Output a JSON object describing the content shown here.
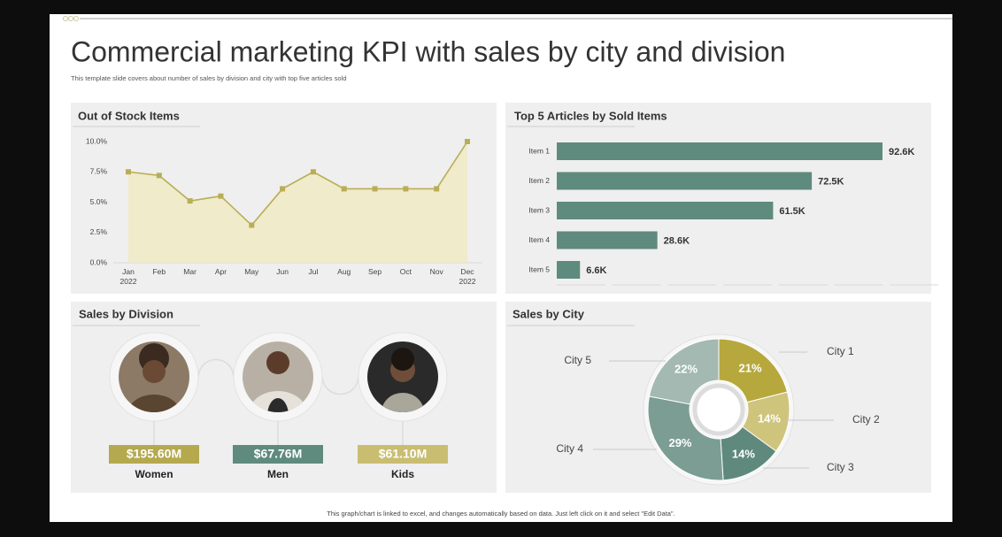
{
  "header": {
    "title": "Commercial marketing KPI with sales by city and division",
    "subtitle": "This template slide covers about number of sales by division and city with top five articles sold"
  },
  "chart_data": [
    {
      "type": "line",
      "title": "Out of Stock Items",
      "categories": [
        "Jan\n2022",
        "Feb",
        "Mar",
        "Apr",
        "May",
        "Jun",
        "Jul",
        "Aug",
        "Sep",
        "Oct",
        "Nov",
        "Dec\n2022"
      ],
      "values": [
        7.5,
        7.2,
        5.1,
        5.5,
        3.1,
        6.1,
        7.5,
        6.1,
        6.1,
        6.1,
        6.1,
        10
      ],
      "ylim": [
        0,
        10
      ],
      "yticks": [
        {
          "value": 0,
          "label": "0.0%"
        },
        {
          "value": 2.5,
          "label": "2.5%"
        },
        {
          "value": 5,
          "label": "5.0%"
        },
        {
          "value": 7.5,
          "label": "7.5%"
        },
        {
          "value": 10,
          "label": "10.0%"
        }
      ],
      "color": "#b9ad55",
      "fill": "#efebcb",
      "grid": false
    },
    {
      "type": "bar",
      "title": "Top 5 Articles by Sold Items",
      "orientation": "horizontal",
      "categories": [
        "Item 1",
        "Item 2",
        "Item 3",
        "Item 4",
        "Item 5"
      ],
      "values": [
        92600,
        72500,
        61500,
        28600,
        6600
      ],
      "value_labels": [
        "92.6K",
        "72.5K",
        "61.5K",
        "28.6K",
        "6.6K"
      ],
      "color": "#5f8a7e"
    },
    {
      "type": "pie",
      "title": "Sales by City",
      "categories": [
        "City 1",
        "City 2",
        "City 3",
        "City 4",
        "City 5"
      ],
      "values": [
        21,
        14,
        14,
        29,
        22
      ],
      "value_labels": [
        "21%",
        "14%",
        "14%",
        "29%",
        "22%"
      ],
      "colors": [
        "#b7a83e",
        "#cfc47c",
        "#5f897d",
        "#7c9d93",
        "#a3b9b2"
      ]
    }
  ],
  "divisions": {
    "title": "Sales by Division",
    "items": [
      {
        "label": "Women",
        "value": "$195.60M",
        "color": "#b5a94f"
      },
      {
        "label": "Men",
        "value": "$67.76M",
        "color": "#5f8a7e"
      },
      {
        "label": "Kids",
        "value": "$61.10M",
        "color": "#c9bd72"
      }
    ]
  },
  "footer": "This graph/chart is linked to excel, and changes automatically based on data. Just left click on it and select \"Edit Data\"."
}
